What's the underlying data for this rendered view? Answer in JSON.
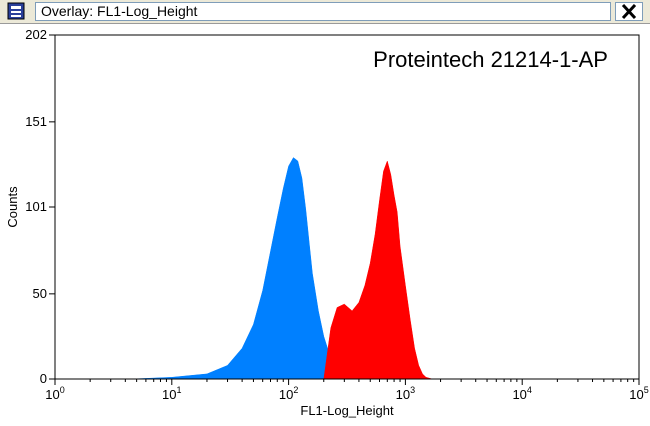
{
  "window": {
    "title": "Overlay: FL1-Log_Height",
    "icons": {
      "app": "histogram-window-icon",
      "close": "close-x-icon"
    }
  },
  "chart_data": {
    "type": "area",
    "title": "Proteintech 21214-1-AP",
    "xlabel": "FL1-Log_Height",
    "ylabel": "Counts",
    "x_scale": "log",
    "xlim": [
      1,
      100000
    ],
    "ylim": [
      0,
      202
    ],
    "x_ticks": [
      {
        "value": 1,
        "base": "10",
        "exp": "0"
      },
      {
        "value": 10,
        "base": "10",
        "exp": "1"
      },
      {
        "value": 100,
        "base": "10",
        "exp": "2"
      },
      {
        "value": 1000,
        "base": "10",
        "exp": "3"
      },
      {
        "value": 10000,
        "base": "10",
        "exp": "4"
      },
      {
        "value": 100000,
        "base": "10",
        "exp": "5"
      }
    ],
    "y_ticks": [
      {
        "value": 0,
        "label": "0"
      },
      {
        "value": 50,
        "label": "50"
      },
      {
        "value": 101,
        "label": "101"
      },
      {
        "value": 151,
        "label": "151"
      },
      {
        "value": 202,
        "label": "202"
      }
    ],
    "grid": false,
    "series": [
      {
        "color": "#0080ff",
        "x": [
          4.5,
          10,
          20,
          30,
          40,
          50,
          60,
          70,
          80,
          90,
          100,
          110,
          120,
          130,
          140,
          150,
          160,
          180,
          200,
          230,
          260,
          300,
          350
        ],
        "y": [
          0,
          1,
          3,
          8,
          18,
          32,
          52,
          75,
          95,
          112,
          125,
          130,
          128,
          118,
          100,
          80,
          62,
          40,
          25,
          12,
          5,
          1,
          0
        ]
      },
      {
        "color": "#ff0000",
        "x": [
          200,
          230,
          260,
          300,
          350,
          400,
          450,
          500,
          550,
          600,
          650,
          700,
          750,
          800,
          850,
          900,
          1000,
          1100,
          1200,
          1300,
          1400,
          1500,
          1700
        ],
        "y": [
          0,
          30,
          42,
          44,
          40,
          45,
          55,
          68,
          85,
          105,
          122,
          128,
          120,
          108,
          98,
          78,
          55,
          35,
          18,
          8,
          3,
          1,
          0
        ]
      }
    ]
  }
}
